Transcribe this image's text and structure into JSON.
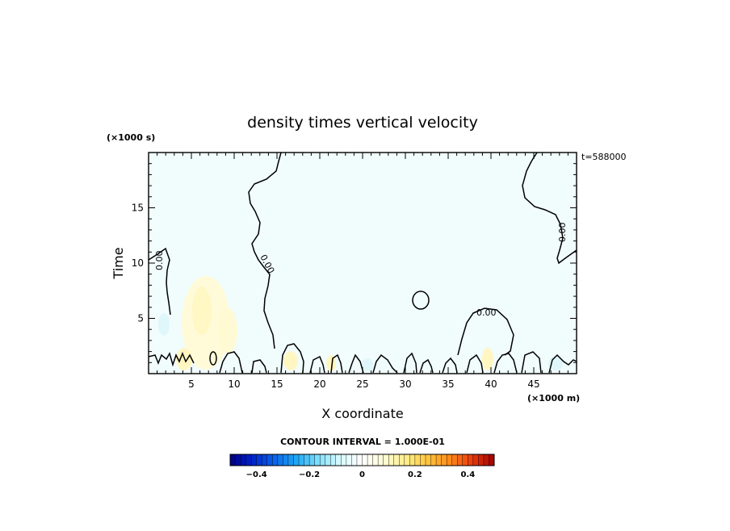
{
  "chart_data": {
    "type": "heatmap",
    "title": "density times vertical velocity",
    "xlabel": "X coordinate",
    "ylabel": "Time",
    "x_unit_label": "(×1000 m)",
    "y_unit_label": "(×1000 s)",
    "time_stamp": "t=588000",
    "xlim": [
      0,
      50
    ],
    "ylim": [
      0,
      20
    ],
    "x_ticks": [
      5,
      10,
      15,
      20,
      25,
      30,
      35,
      40,
      45
    ],
    "x_tick_labels": [
      "5",
      "10",
      "15",
      "20",
      "25",
      "30",
      "35",
      "40",
      "45"
    ],
    "y_ticks": [
      5,
      10,
      15
    ],
    "y_tick_labels": [
      "5",
      "10",
      "15"
    ],
    "contour_labels": [
      "0.00",
      "0.00",
      "0.00",
      "0.00"
    ],
    "contour_interval_text": "CONTOUR INTERVAL = 1.000E-01",
    "colorbar": {
      "range": [
        -0.5,
        0.5
      ],
      "ticks": [
        -0.4,
        -0.2,
        0,
        0.2,
        0.4
      ],
      "tick_labels": [
        "−0.4",
        "−0.2",
        "0",
        "0.2",
        "0.4"
      ],
      "n_bins": 50,
      "colors": [
        "#00007f",
        "#0022cc",
        "#0b63e8",
        "#1ea7f5",
        "#7fe0fb",
        "#d8fbff",
        "#ffffff",
        "#fffbd6",
        "#ffef8a",
        "#ffc43d",
        "#ff8a1a",
        "#e83a0e",
        "#a00000"
      ]
    },
    "background_value_color": "#f1fcfd",
    "zero_contour_color": "#000000"
  }
}
